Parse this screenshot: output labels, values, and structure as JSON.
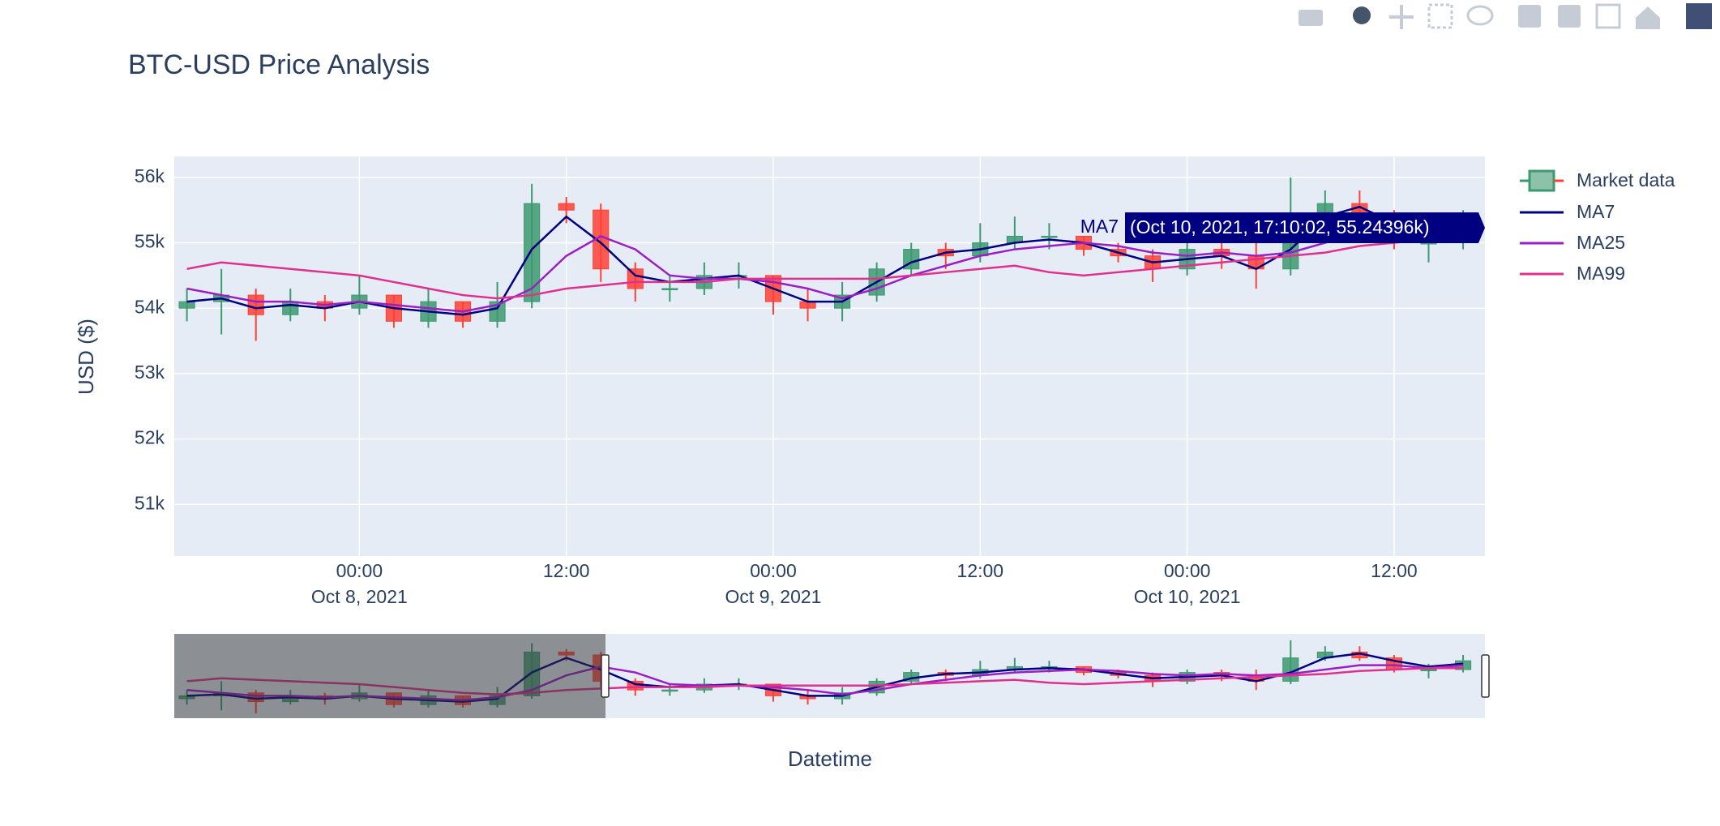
{
  "chart_data": {
    "type": "candlestick",
    "title": "BTC-USD Price Analysis",
    "xlabel": "Datetime",
    "ylabel": "USD ($)",
    "name": "Market data",
    "increasing_color": "#3d9970",
    "decreasing_color": "#ff4136",
    "x": [
      "2021-10-07T14:00",
      "2021-10-07T16:00",
      "2021-10-07T18:00",
      "2021-10-07T20:00",
      "2021-10-07T22:00",
      "2021-10-08T00:00",
      "2021-10-08T02:00",
      "2021-10-08T04:00",
      "2021-10-08T06:00",
      "2021-10-08T08:00",
      "2021-10-08T10:00",
      "2021-10-08T12:00",
      "2021-10-08T14:00",
      "2021-10-08T16:00",
      "2021-10-08T18:00",
      "2021-10-08T20:00",
      "2021-10-08T22:00",
      "2021-10-09T00:00",
      "2021-10-09T02:00",
      "2021-10-09T04:00",
      "2021-10-09T06:00",
      "2021-10-09T08:00",
      "2021-10-09T10:00",
      "2021-10-09T12:00",
      "2021-10-09T14:00",
      "2021-10-09T16:00",
      "2021-10-09T18:00",
      "2021-10-09T20:00",
      "2021-10-09T22:00",
      "2021-10-10T00:00",
      "2021-10-10T02:00",
      "2021-10-10T04:00",
      "2021-10-10T06:00",
      "2021-10-10T08:00",
      "2021-10-10T10:00",
      "2021-10-10T12:00",
      "2021-10-10T14:00",
      "2021-10-10T16:00"
    ],
    "open": [
      54000,
      54100,
      54200,
      53900,
      54100,
      54000,
      54200,
      53800,
      54100,
      53800,
      54100,
      55600,
      55500,
      54600,
      54300,
      54300,
      54500,
      54500,
      54100,
      54000,
      54200,
      54600,
      54900,
      54800,
      55000,
      55100,
      55100,
      54900,
      54800,
      54600,
      54900,
      54800,
      54600,
      55400,
      55600,
      55400,
      55000,
      55000
    ],
    "high": [
      54300,
      54600,
      54300,
      54300,
      54200,
      54500,
      54200,
      54300,
      54100,
      54400,
      55900,
      55700,
      55600,
      54700,
      54500,
      54700,
      54700,
      54500,
      54300,
      54400,
      54700,
      55000,
      55000,
      55300,
      55400,
      55300,
      55100,
      55000,
      54900,
      55000,
      55000,
      55000,
      56000,
      55800,
      55800,
      55500,
      55200,
      55500
    ],
    "low": [
      53800,
      53600,
      53500,
      53800,
      53800,
      53900,
      53700,
      53700,
      53700,
      53700,
      54000,
      55300,
      54400,
      54100,
      54100,
      54200,
      54300,
      53900,
      53800,
      53800,
      54100,
      54500,
      54600,
      54700,
      54900,
      54900,
      54800,
      54700,
      54400,
      54500,
      54600,
      54300,
      54500,
      55300,
      55300,
      54900,
      54700,
      54900
    ],
    "close": [
      54100,
      54200,
      53900,
      54100,
      54000,
      54200,
      53800,
      54100,
      53800,
      54100,
      55600,
      55500,
      54600,
      54300,
      54300,
      54500,
      54500,
      54100,
      54000,
      54200,
      54600,
      54900,
      54800,
      55000,
      55100,
      55100,
      54900,
      54800,
      54600,
      54900,
      54800,
      54600,
      55400,
      55600,
      55400,
      55000,
      55000,
      55300
    ],
    "series": [
      {
        "name": "MA7",
        "color": "#000080",
        "values": [
          54100,
          54150,
          54000,
          54050,
          54000,
          54100,
          54000,
          53950,
          53900,
          54000,
          54900,
          55400,
          55000,
          54500,
          54400,
          54450,
          54500,
          54300,
          54100,
          54100,
          54400,
          54700,
          54850,
          54900,
          55000,
          55050,
          55000,
          54850,
          54700,
          54750,
          54800,
          54600,
          54900,
          55400,
          55550,
          55300,
          55100,
          55200
        ]
      },
      {
        "name": "MA25",
        "color": "#9b1fc4",
        "values": [
          54300,
          54200,
          54100,
          54100,
          54050,
          54100,
          54050,
          54000,
          53950,
          54050,
          54300,
          54800,
          55100,
          54900,
          54500,
          54450,
          54450,
          54400,
          54300,
          54150,
          54300,
          54500,
          54650,
          54800,
          54900,
          54950,
          55000,
          54950,
          54850,
          54800,
          54850,
          54800,
          54850,
          55000,
          55150,
          55150,
          55050,
          55150
        ]
      },
      {
        "name": "MA99",
        "color": "#e0308f",
        "values": [
          54600,
          54700,
          54650,
          54600,
          54550,
          54500,
          54400,
          54300,
          54200,
          54150,
          54200,
          54300,
          54350,
          54400,
          54400,
          54400,
          54450,
          54450,
          54450,
          54450,
          54450,
          54500,
          54550,
          54600,
          54650,
          54550,
          54500,
          54550,
          54600,
          54650,
          54700,
          54750,
          54800,
          54850,
          54950,
          55000,
          55050,
          55050
        ]
      }
    ],
    "xlim": [
      "2021-10-07T13:16",
      "2021-10-10T17:16"
    ],
    "xticks": [
      {
        "value": "2021-10-08T00:00",
        "label": "00:00",
        "sublabel": "Oct 8, 2021"
      },
      {
        "value": "2021-10-08T12:00",
        "label": "12:00"
      },
      {
        "value": "2021-10-09T00:00",
        "label": "00:00",
        "sublabel": "Oct 9, 2021"
      },
      {
        "value": "2021-10-09T12:00",
        "label": "12:00"
      },
      {
        "value": "2021-10-10T00:00",
        "label": "00:00",
        "sublabel": "Oct 10, 2021"
      },
      {
        "value": "2021-10-10T12:00",
        "label": "12:00"
      }
    ],
    "ylim": [
      50210,
      56320
    ],
    "yticks": [
      {
        "value": 51000,
        "label": "51k"
      },
      {
        "value": 52000,
        "label": "52k"
      },
      {
        "value": 53000,
        "label": "53k"
      },
      {
        "value": 54000,
        "label": "54k"
      },
      {
        "value": 55000,
        "label": "55k"
      },
      {
        "value": 56000,
        "label": "56k"
      }
    ],
    "grid": true,
    "legend": "right",
    "hover": {
      "name": "MA7",
      "text": "(Oct 10, 2021, 17:10:02, 55.24396k)"
    }
  }
}
